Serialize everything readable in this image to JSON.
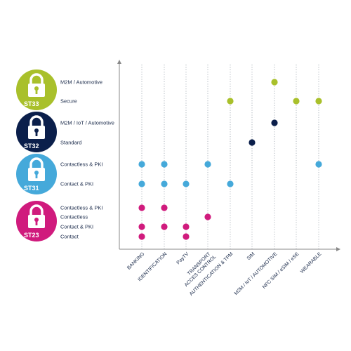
{
  "chart_data": {
    "type": "scatter",
    "title": "",
    "categories": [
      "BANKING",
      "IDENTIFICATION",
      "PayTV",
      "TRANSPORT\nACCES CONTROL",
      "AUTHENTICATION & TPM",
      "SIM",
      "M2M / IoT / AUTOMOTIVE",
      "NFC SIM / eSIM / eSE",
      "WEARABLE"
    ],
    "families": [
      {
        "name": "ST33",
        "color": "#a9c02b",
        "icon": "lock-icon",
        "rows": [
          {
            "label": "M2M / Automotive",
            "points": [
              "M2M / IoT / AUTOMOTIVE"
            ]
          },
          {
            "label": "Secure",
            "points": [
              "AUTHENTICATION & TPM",
              "NFC SIM / eSIM / eSE",
              "WEARABLE"
            ]
          }
        ]
      },
      {
        "name": "ST32",
        "color": "#0b1f4b",
        "icon": "lock-icon",
        "rows": [
          {
            "label": "M2M / IoT / Automotive",
            "points": [
              "M2M / IoT / AUTOMOTIVE"
            ]
          },
          {
            "label": "Standard",
            "points": [
              "SIM"
            ]
          }
        ]
      },
      {
        "name": "ST31",
        "color": "#45a9da",
        "icon": "lock-icon",
        "rows": [
          {
            "label": "Contactless & PKI",
            "points": [
              "BANKING",
              "IDENTIFICATION",
              "TRANSPORT\nACCES CONTROL",
              "WEARABLE"
            ]
          },
          {
            "label": "Contact & PKI",
            "points": [
              "BANKING",
              "IDENTIFICATION",
              "PayTV",
              "AUTHENTICATION & TPM"
            ]
          }
        ]
      },
      {
        "name": "ST23",
        "color": "#d01b7d",
        "icon": "lock-icon",
        "rows": [
          {
            "label": "Contactless & PKI",
            "points": [
              "BANKING",
              "IDENTIFICATION"
            ]
          },
          {
            "label": "Contactless",
            "points": [
              "TRANSPORT\nACCES CONTROL"
            ]
          },
          {
            "label": "Contact & PKI",
            "points": [
              "BANKING",
              "IDENTIFICATION",
              "PayTV"
            ]
          },
          {
            "label": "Contact",
            "points": [
              "BANKING",
              "PayTV"
            ]
          }
        ]
      }
    ],
    "grid": "vertical dotted",
    "axes": "arrows on x and y"
  }
}
